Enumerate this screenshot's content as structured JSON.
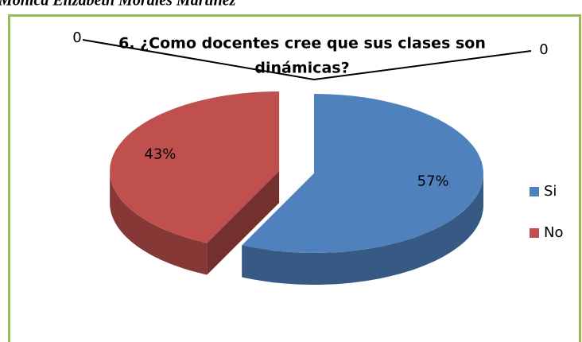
{
  "author": "Mónica Elizabeth Morales Martínez",
  "chart_data": {
    "type": "pie",
    "title_lines": [
      "6.    ¿Como  docentes cree que sus  clases  son",
      "dinámicas?"
    ],
    "categories": [
      "Si",
      "No"
    ],
    "values": [
      57,
      43
    ],
    "value_labels": [
      "57%",
      "43%"
    ],
    "colors": [
      "#4f81bd",
      "#c0504d"
    ],
    "annotations": [
      "0",
      "0"
    ],
    "legend": "right",
    "style": "3d exploded"
  }
}
